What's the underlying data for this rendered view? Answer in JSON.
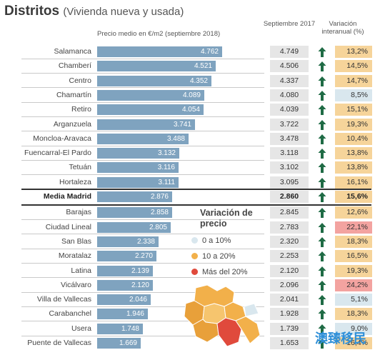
{
  "title": "Distritos",
  "subtitle": "(Vivienda nueva y usada)",
  "headers": {
    "price": "Precio medio en €/m2 (septiembre 2018)",
    "prev": "Septiembre 2017",
    "variation": "Variación interanual (%)"
  },
  "chart_data": {
    "type": "bar",
    "title": "Distritos",
    "subtitle": "(Vivienda nueva y usada)",
    "xlabel": "Precio medio en €/m2 (septiembre 2018)",
    "ylabel": "",
    "xlim": [
      0,
      4800
    ],
    "categories": [
      "Salamanca",
      "Chamberí",
      "Centro",
      "Chamartín",
      "Retiro",
      "Arganzuela",
      "Moncloa-Aravaca",
      "Fuencarral-El Pardo",
      "Tetuán",
      "Hortaleza",
      "Media Madrid",
      "Barajas",
      "Ciudad Lineal",
      "San Blas",
      "Moratalaz",
      "Latina",
      "Vicálvaro",
      "Villa de Vallecas",
      "Carabanchel",
      "Usera",
      "Puente de Vallecas"
    ],
    "values": [
      4762,
      4521,
      4352,
      4089,
      4054,
      3741,
      3488,
      3132,
      3116,
      3111,
      2876,
      2858,
      2805,
      2338,
      2270,
      2139,
      2120,
      2046,
      1946,
      1748,
      1669
    ],
    "value_labels": [
      "4.762",
      "4.521",
      "4.352",
      "4.089",
      "4.054",
      "3.741",
      "3.488",
      "3.132",
      "3.116",
      "3.111",
      "2.876",
      "2.858",
      "2.805",
      "2.338",
      "2.270",
      "2.139",
      "2.120",
      "2.046",
      "1.946",
      "1.748",
      "1.669"
    ],
    "prev_year_label": "Septiembre 2017",
    "prev_year": [
      "4.749",
      "4.506",
      "4.337",
      "4.080",
      "4.039",
      "3.722",
      "3.478",
      "3.118",
      "3.102",
      "3.095",
      "2.860",
      "2.845",
      "2.783",
      "2.320",
      "2.253",
      "2.120",
      "2.096",
      "2.041",
      "1.928",
      "1.739",
      "1.653"
    ],
    "variation_label": "Variación interanual (%)",
    "variation": [
      "13,2%",
      "14,5%",
      "14,7%",
      "8,5%",
      "15,1%",
      "19,3%",
      "10,4%",
      "13,8%",
      "13,8%",
      "16,1%",
      "15,6%",
      "12,6%",
      "22,1%",
      "18,3%",
      "16,5%",
      "19,3%",
      "24,2%",
      "5,1%",
      "18,3%",
      "9,0%",
      "16,4%"
    ],
    "highlight_index": 10
  },
  "legend": {
    "title": "Variación de precio",
    "items": [
      {
        "label": "0 a 10%",
        "color": "#d9e7ee"
      },
      {
        "label": "10 a 20%",
        "color": "#f2b04a"
      },
      {
        "label": "Más del 20%",
        "color": "#e04a3c"
      }
    ]
  },
  "colors": {
    "bar": "#7fa3bf",
    "arrow": "#1f6b45",
    "low": "#d9e7ee",
    "mid": "#f6d49a",
    "high": "#f3a3a0"
  },
  "watermark": "澳臻移民"
}
